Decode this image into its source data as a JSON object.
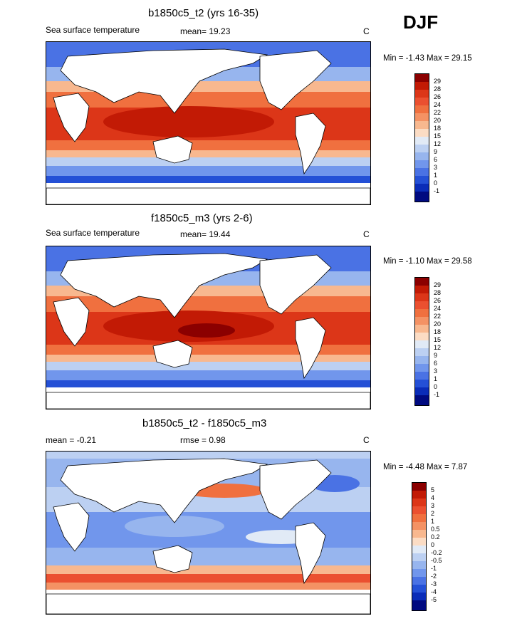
{
  "season": "DJF",
  "panels": [
    {
      "title": "b1850c5_t2 (yrs 16-35)",
      "left_label": "Sea surface temperature",
      "mean_label": "mean=  19.23",
      "unit": "C",
      "minmax": "Min =  -1.43 Max =  29.15",
      "colorbar_labels": [
        "29",
        "28",
        "26",
        "24",
        "22",
        "20",
        "18",
        "15",
        "12",
        "9",
        "6",
        "3",
        "1",
        "0",
        "-1"
      ],
      "colorbar_colors": [
        "#8b0000",
        "#c21a05",
        "#dc3618",
        "#eb5030",
        "#f0703f",
        "#f49264",
        "#f8b88f",
        "#fbdcc4",
        "#e1eaf6",
        "#bcd0f2",
        "#97b5ee",
        "#7196ec",
        "#4a72e4",
        "#2450d6",
        "#0a2cb8",
        "#000a80"
      ]
    },
    {
      "title": "f1850c5_m3 (yrs 2-6)",
      "left_label": "Sea surface temperature",
      "mean_label": "mean=  19.44",
      "unit": "C",
      "minmax": "Min =  -1.10 Max =  29.58",
      "colorbar_labels": [
        "29",
        "28",
        "26",
        "24",
        "22",
        "20",
        "18",
        "15",
        "12",
        "9",
        "6",
        "3",
        "1",
        "0",
        "-1"
      ],
      "colorbar_colors": [
        "#8b0000",
        "#c21a05",
        "#dc3618",
        "#eb5030",
        "#f0703f",
        "#f49264",
        "#f8b88f",
        "#fbdcc4",
        "#e1eaf6",
        "#bcd0f2",
        "#97b5ee",
        "#7196ec",
        "#4a72e4",
        "#2450d6",
        "#0a2cb8",
        "#000a80"
      ]
    },
    {
      "title": "b1850c5_t2 - f1850c5_m3",
      "left_label": "mean =  -0.21",
      "mean_label": "rmse =   0.98",
      "unit": "C",
      "minmax": "Min =  -4.48 Max =   7.87",
      "colorbar_labels": [
        "5",
        "4",
        "3",
        "2",
        "1",
        "0.5",
        "0.2",
        "0",
        "-0.2",
        "-0.5",
        "-1",
        "-2",
        "-3",
        "-4",
        "-5"
      ],
      "colorbar_colors": [
        "#8b0000",
        "#c21a05",
        "#dc3618",
        "#eb5030",
        "#f0703f",
        "#f49264",
        "#f8b88f",
        "#fbdcc4",
        "#e1eaf6",
        "#bcd0f2",
        "#97b5ee",
        "#7196ec",
        "#4a72e4",
        "#2450d6",
        "#0a2cb8",
        "#000a80"
      ]
    }
  ]
}
